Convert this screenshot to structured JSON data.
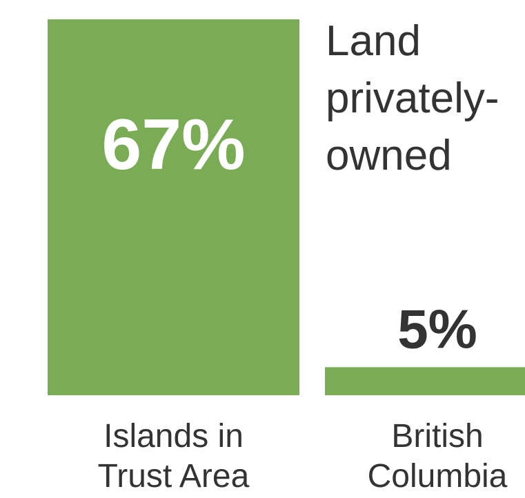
{
  "chart_data": {
    "type": "bar",
    "title_lines": [
      "Land",
      "privately-",
      "owned"
    ],
    "categories": [
      [
        "Islands in",
        "Trust Area"
      ],
      [
        "British",
        "Columbia"
      ]
    ],
    "values": [
      67,
      5
    ],
    "value_labels": [
      "67%",
      "5%"
    ],
    "ylim": [
      0,
      67
    ],
    "colors": {
      "bar": "#79ac55",
      "text": "#333333",
      "inside_label": "#ffffff"
    }
  }
}
